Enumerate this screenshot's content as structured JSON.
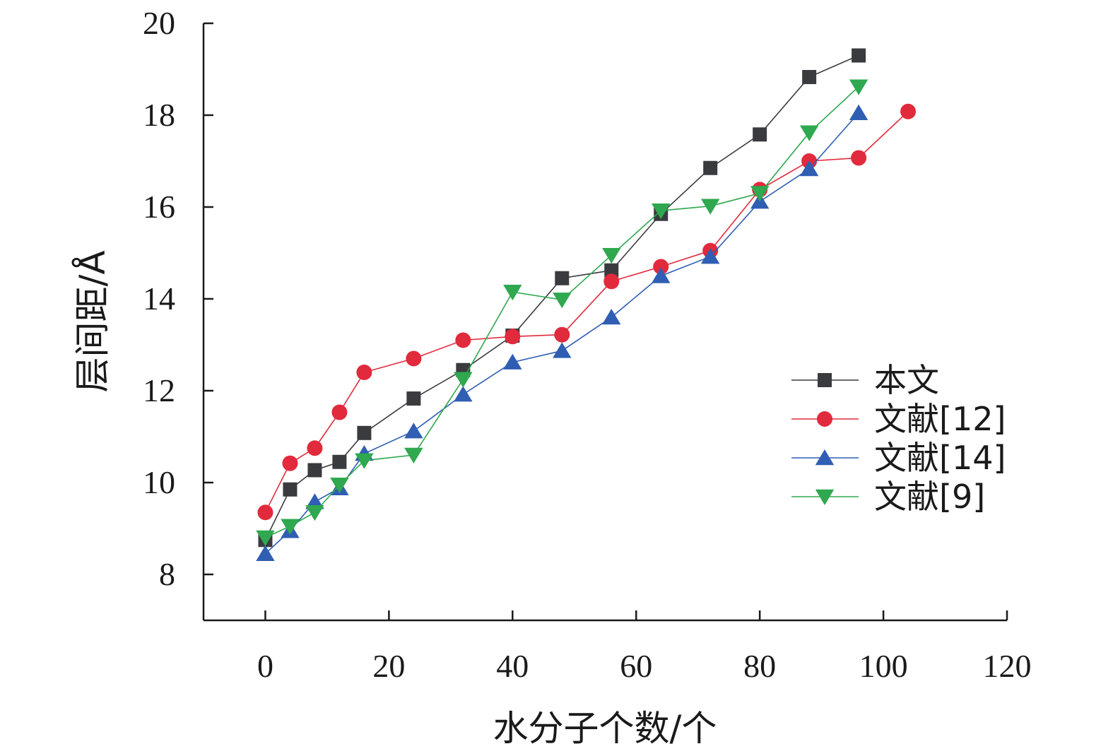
{
  "chart_data": {
    "type": "line",
    "xlabel": "水分子个数/个",
    "ylabel": "层间距/Å",
    "xlim": [
      -10,
      120
    ],
    "ylim": [
      7,
      20
    ],
    "xticks": [
      0,
      20,
      40,
      60,
      80,
      100,
      120
    ],
    "yticks": [
      8,
      10,
      12,
      14,
      16,
      18,
      20
    ],
    "grid": false,
    "legend_position": "right",
    "series": [
      {
        "name": "本文",
        "marker": "square",
        "color": "#3a3b3f",
        "x": [
          0,
          4,
          8,
          12,
          16,
          24,
          32,
          40,
          48,
          56,
          64,
          72,
          80,
          88,
          96
        ],
        "y": [
          8.75,
          9.85,
          10.27,
          10.45,
          11.08,
          11.83,
          12.45,
          13.2,
          14.45,
          14.62,
          15.85,
          16.85,
          17.58,
          18.83,
          19.3
        ]
      },
      {
        "name": "文献[12]",
        "marker": "circle",
        "color": "#e12a3c",
        "x": [
          0,
          4,
          8,
          12,
          16,
          24,
          32,
          40,
          48,
          56,
          64,
          72,
          80,
          88,
          96,
          104
        ],
        "y": [
          9.35,
          10.42,
          10.75,
          11.53,
          12.4,
          12.7,
          13.1,
          13.18,
          13.22,
          14.38,
          14.7,
          15.05,
          16.38,
          17.0,
          17.07,
          18.08
        ]
      },
      {
        "name": "文献[14]",
        "marker": "triangle-up",
        "color": "#2f5eb3",
        "x": [
          0,
          4,
          8,
          12,
          16,
          24,
          32,
          40,
          48,
          56,
          64,
          72,
          80,
          88,
          96
        ],
        "y": [
          8.45,
          8.95,
          9.58,
          9.88,
          10.63,
          11.12,
          11.92,
          12.62,
          12.87,
          13.6,
          14.5,
          14.92,
          16.12,
          16.83,
          18.05
        ]
      },
      {
        "name": "文献[9]",
        "marker": "triangle-down",
        "color": "#2fa84f",
        "x": [
          0,
          4,
          8,
          12,
          16,
          24,
          32,
          40,
          48,
          56,
          64,
          72,
          80,
          88,
          96
        ],
        "y": [
          8.8,
          9.05,
          9.35,
          9.95,
          10.48,
          10.6,
          12.25,
          14.15,
          13.98,
          14.95,
          15.92,
          16.02,
          16.3,
          17.62,
          18.62
        ]
      }
    ]
  }
}
